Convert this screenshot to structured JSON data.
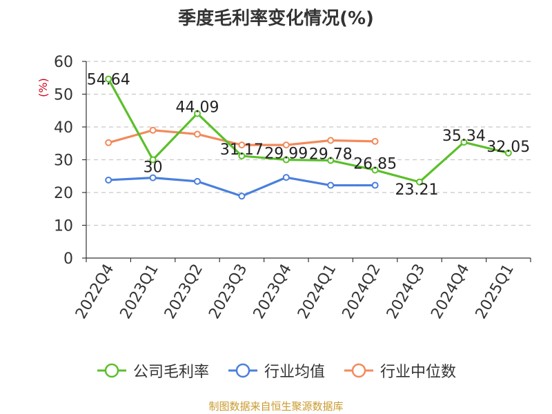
{
  "chart_data": {
    "type": "line",
    "title": "季度毛利率变化情况(%)",
    "ylabel": "(%)",
    "xlabel": "",
    "categories": [
      "2022Q4",
      "2023Q1",
      "2023Q2",
      "2023Q3",
      "2023Q4",
      "2024Q1",
      "2024Q2",
      "2024Q3",
      "2024Q4",
      "2025Q1"
    ],
    "ylim": [
      0,
      60
    ],
    "yticks": [
      0,
      10,
      20,
      30,
      40,
      50,
      60
    ],
    "grid": true,
    "legend_position": "bottom",
    "series": [
      {
        "name": "公司毛利率",
        "color": "#5bbf2b",
        "values": [
          54.64,
          30,
          44.09,
          31.17,
          29.99,
          29.78,
          26.85,
          23.21,
          35.34,
          32.05
        ],
        "data_labels": [
          "54.64",
          "30",
          "44.09",
          "31.17",
          "29.99",
          "29.78",
          "26.85",
          "23.21",
          "35.34",
          "32.05"
        ]
      },
      {
        "name": "行业均值",
        "color": "#4a7fdc",
        "values": [
          23.8,
          24.5,
          23.4,
          18.9,
          24.6,
          22.2,
          22.2,
          null,
          null,
          null
        ]
      },
      {
        "name": "行业中位数",
        "color": "#f28a5a",
        "values": [
          35.2,
          39.0,
          37.8,
          34.5,
          34.5,
          35.9,
          35.6,
          null,
          null,
          null
        ]
      }
    ]
  },
  "footer": {
    "source": "制图数据来自恒生聚源数据库"
  }
}
